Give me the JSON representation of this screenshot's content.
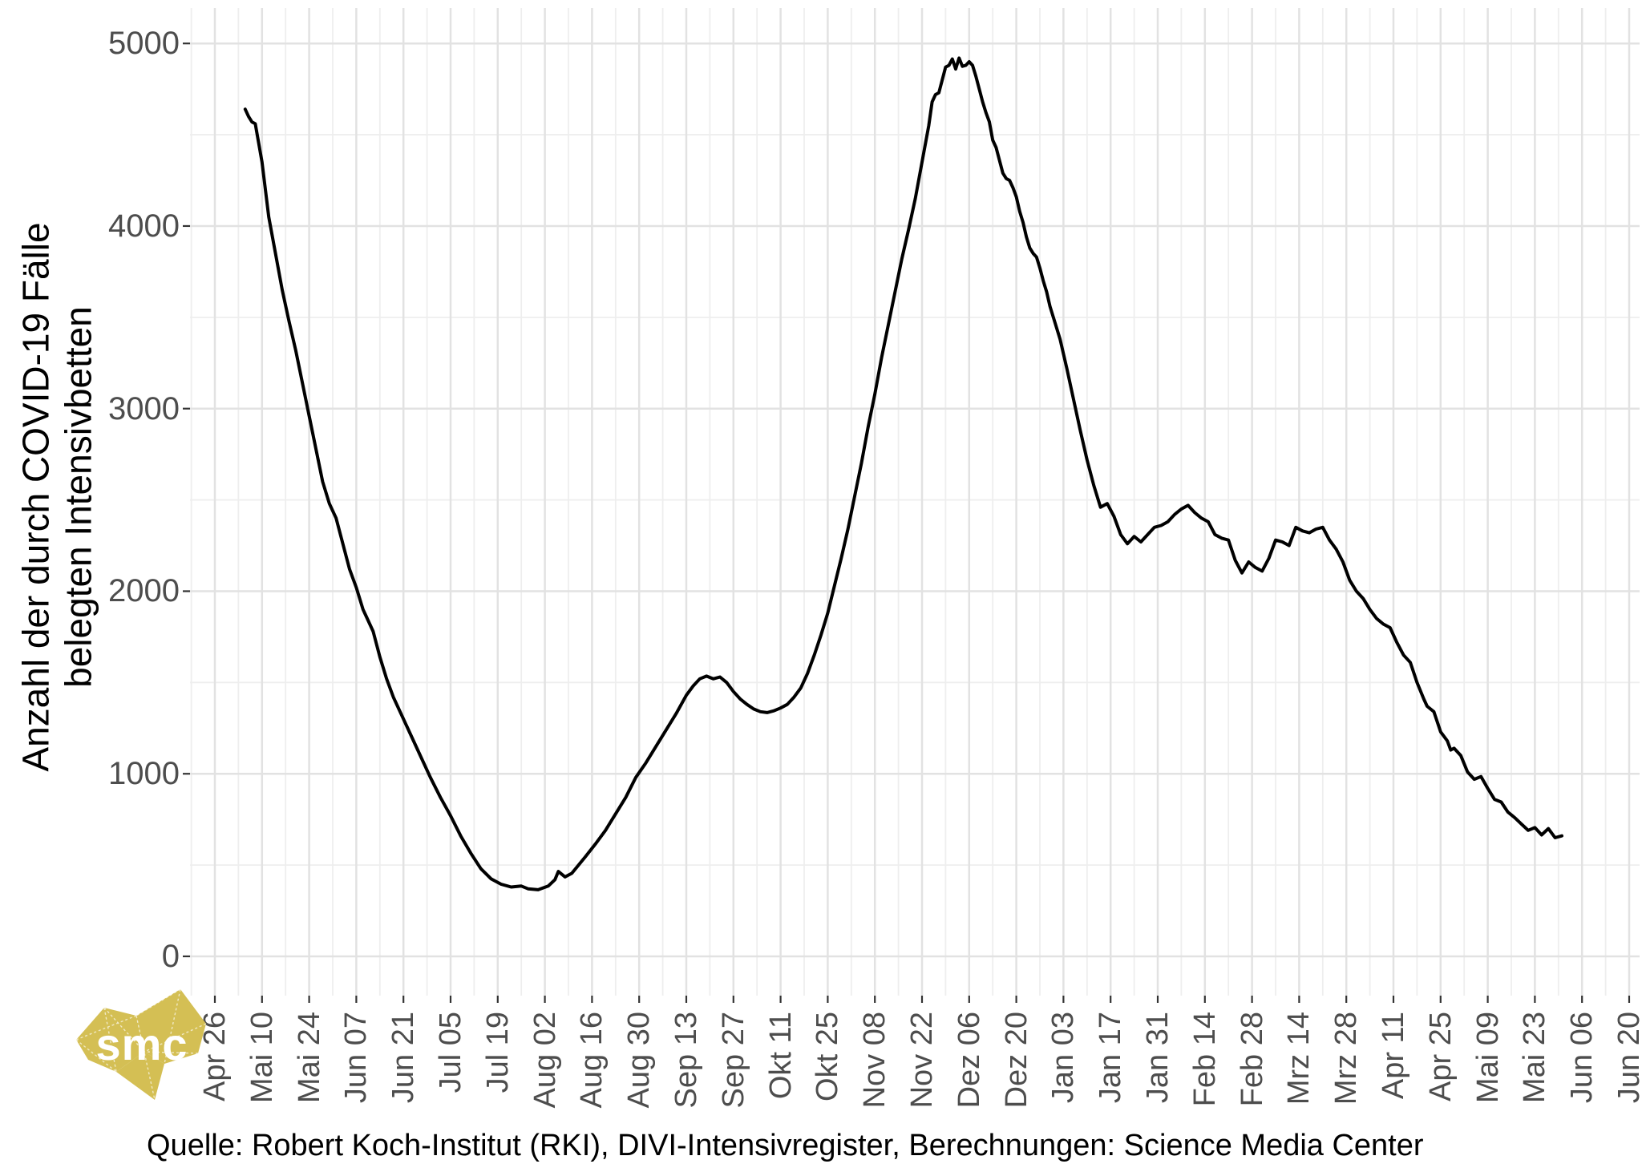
{
  "y_axis": {
    "title_line1": "Anzahl der durch COVID-19 Fälle",
    "title_line2": "belegten Intensivbetten",
    "ticks": [
      0,
      1000,
      2000,
      3000,
      4000,
      5000
    ]
  },
  "x_axis": {
    "tick_labels": [
      "Apr 26",
      "Mai 10",
      "Mai 24",
      "Jun 07",
      "Jun 21",
      "Jul 05",
      "Jul 19",
      "Aug 02",
      "Aug 16",
      "Aug 30",
      "Sep 13",
      "Sep 27",
      "Okt 11",
      "Okt 25",
      "Nov 08",
      "Nov 22",
      "Dez 06",
      "Dez 20",
      "Jan 03",
      "Jan 17",
      "Jan 31",
      "Feb 14",
      "Feb 28",
      "Mrz 14",
      "Mrz 28",
      "Apr 11",
      "Apr 25",
      "Mai 09",
      "Mai 23",
      "Jun 06",
      "Jun 20"
    ],
    "tick_interval_days": 14
  },
  "caption": "Quelle: Robert Koch-Institut (RKI), DIVI-Intensivregister, Berechnungen: Science Media Center",
  "logo_text": "smc",
  "colors": {
    "background": "#ffffff",
    "line": "#000000",
    "grid_major": "#e2e2e2",
    "grid_minor": "#eeeeee",
    "tick_mark": "#333333",
    "tick_label": "#4d4d4d",
    "text": "#000000",
    "logo_gold": "#d4bf54"
  },
  "chart_data": {
    "type": "line",
    "title": "",
    "xlabel": "",
    "ylabel": "Anzahl der durch COVID-19 Fälle belegten Intensivbetten",
    "ylim": [
      0,
      5000
    ],
    "y_ticks": [
      0,
      1000,
      2000,
      3000,
      4000,
      5000
    ],
    "grid": "major+minor, minor y step 500, minor x step 7 days",
    "legend": "none",
    "x_start_date": "2020-04-26",
    "x_end_date": "2021-06-20",
    "x_tick_labels": [
      "Apr 26",
      "Mai 10",
      "Mai 24",
      "Jun 07",
      "Jun 21",
      "Jul 05",
      "Jul 19",
      "Aug 02",
      "Aug 16",
      "Aug 30",
      "Sep 13",
      "Sep 27",
      "Okt 11",
      "Okt 25",
      "Nov 08",
      "Nov 22",
      "Dez 06",
      "Dez 20",
      "Jan 03",
      "Jan 17",
      "Jan 31",
      "Feb 14",
      "Feb 28",
      "Mrz 14",
      "Mrz 28",
      "Apr 11",
      "Apr 25",
      "Mai 09",
      "Mai 23",
      "Jun 06",
      "Jun 20"
    ],
    "series": [
      {
        "name": "COVID-19 belegte Intensivbetten",
        "points": [
          [
            "2020-05-05",
            4640
          ],
          [
            "2020-05-06",
            4600
          ],
          [
            "2020-05-07",
            4570
          ],
          [
            "2020-05-08",
            4560
          ],
          [
            "2020-05-10",
            4350
          ],
          [
            "2020-05-12",
            4050
          ],
          [
            "2020-05-14",
            3850
          ],
          [
            "2020-05-16",
            3650
          ],
          [
            "2020-05-18",
            3480
          ],
          [
            "2020-05-20",
            3320
          ],
          [
            "2020-05-22",
            3140
          ],
          [
            "2020-05-24",
            2960
          ],
          [
            "2020-05-26",
            2780
          ],
          [
            "2020-05-28",
            2600
          ],
          [
            "2020-05-30",
            2480
          ],
          [
            "2020-06-01",
            2400
          ],
          [
            "2020-06-03",
            2260
          ],
          [
            "2020-06-05",
            2120
          ],
          [
            "2020-06-07",
            2020
          ],
          [
            "2020-06-09",
            1900
          ],
          [
            "2020-06-10",
            1860
          ],
          [
            "2020-06-12",
            1780
          ],
          [
            "2020-06-14",
            1640
          ],
          [
            "2020-06-16",
            1520
          ],
          [
            "2020-06-18",
            1420
          ],
          [
            "2020-06-20",
            1340
          ],
          [
            "2020-06-23",
            1220
          ],
          [
            "2020-06-26",
            1100
          ],
          [
            "2020-06-29",
            980
          ],
          [
            "2020-07-02",
            870
          ],
          [
            "2020-07-05",
            770
          ],
          [
            "2020-07-08",
            660
          ],
          [
            "2020-07-11",
            565
          ],
          [
            "2020-07-14",
            480
          ],
          [
            "2020-07-17",
            425
          ],
          [
            "2020-07-20",
            395
          ],
          [
            "2020-07-23",
            380
          ],
          [
            "2020-07-26",
            385
          ],
          [
            "2020-07-28",
            370
          ],
          [
            "2020-07-31",
            365
          ],
          [
            "2020-08-03",
            385
          ],
          [
            "2020-08-05",
            420
          ],
          [
            "2020-08-06",
            465
          ],
          [
            "2020-08-08",
            435
          ],
          [
            "2020-08-10",
            455
          ],
          [
            "2020-08-12",
            500
          ],
          [
            "2020-08-14",
            545
          ],
          [
            "2020-08-17",
            615
          ],
          [
            "2020-08-20",
            690
          ],
          [
            "2020-08-23",
            780
          ],
          [
            "2020-08-26",
            870
          ],
          [
            "2020-08-29",
            980
          ],
          [
            "2020-09-01",
            1060
          ],
          [
            "2020-09-04",
            1150
          ],
          [
            "2020-09-07",
            1240
          ],
          [
            "2020-09-10",
            1330
          ],
          [
            "2020-09-13",
            1430
          ],
          [
            "2020-09-15",
            1480
          ],
          [
            "2020-09-17",
            1520
          ],
          [
            "2020-09-19",
            1535
          ],
          [
            "2020-09-21",
            1520
          ],
          [
            "2020-09-23",
            1530
          ],
          [
            "2020-09-25",
            1500
          ],
          [
            "2020-09-27",
            1450
          ],
          [
            "2020-09-29",
            1410
          ],
          [
            "2020-10-01",
            1380
          ],
          [
            "2020-10-03",
            1355
          ],
          [
            "2020-10-05",
            1340
          ],
          [
            "2020-10-07",
            1335
          ],
          [
            "2020-10-09",
            1345
          ],
          [
            "2020-10-11",
            1360
          ],
          [
            "2020-10-13",
            1380
          ],
          [
            "2020-10-15",
            1420
          ],
          [
            "2020-10-17",
            1470
          ],
          [
            "2020-10-19",
            1550
          ],
          [
            "2020-10-21",
            1650
          ],
          [
            "2020-10-23",
            1760
          ],
          [
            "2020-10-25",
            1880
          ],
          [
            "2020-10-27",
            2030
          ],
          [
            "2020-10-29",
            2180
          ],
          [
            "2020-10-31",
            2340
          ],
          [
            "2020-11-02",
            2520
          ],
          [
            "2020-11-04",
            2700
          ],
          [
            "2020-11-06",
            2900
          ],
          [
            "2020-11-08",
            3080
          ],
          [
            "2020-11-10",
            3280
          ],
          [
            "2020-11-12",
            3460
          ],
          [
            "2020-11-14",
            3640
          ],
          [
            "2020-11-16",
            3820
          ],
          [
            "2020-11-18",
            3980
          ],
          [
            "2020-11-20",
            4150
          ],
          [
            "2020-11-22",
            4350
          ],
          [
            "2020-11-24",
            4550
          ],
          [
            "2020-11-25",
            4680
          ],
          [
            "2020-11-26",
            4720
          ],
          [
            "2020-11-27",
            4730
          ],
          [
            "2020-11-28",
            4800
          ],
          [
            "2020-11-29",
            4870
          ],
          [
            "2020-11-30",
            4880
          ],
          [
            "2020-12-01",
            4915
          ],
          [
            "2020-12-02",
            4860
          ],
          [
            "2020-12-03",
            4920
          ],
          [
            "2020-12-04",
            4875
          ],
          [
            "2020-12-05",
            4880
          ],
          [
            "2020-12-06",
            4900
          ],
          [
            "2020-12-07",
            4880
          ],
          [
            "2020-12-08",
            4820
          ],
          [
            "2020-12-09",
            4750
          ],
          [
            "2020-12-10",
            4680
          ],
          [
            "2020-12-11",
            4620
          ],
          [
            "2020-12-12",
            4570
          ],
          [
            "2020-12-13",
            4470
          ],
          [
            "2020-12-14",
            4430
          ],
          [
            "2020-12-15",
            4360
          ],
          [
            "2020-12-16",
            4290
          ],
          [
            "2020-12-17",
            4260
          ],
          [
            "2020-12-18",
            4250
          ],
          [
            "2020-12-19",
            4210
          ],
          [
            "2020-12-20",
            4160
          ],
          [
            "2020-12-21",
            4080
          ],
          [
            "2020-12-22",
            4020
          ],
          [
            "2020-12-23",
            3940
          ],
          [
            "2020-12-24",
            3880
          ],
          [
            "2020-12-25",
            3850
          ],
          [
            "2020-12-26",
            3830
          ],
          [
            "2020-12-27",
            3770
          ],
          [
            "2020-12-28",
            3700
          ],
          [
            "2020-12-29",
            3640
          ],
          [
            "2020-12-30",
            3560
          ],
          [
            "2020-12-31",
            3500
          ],
          [
            "2021-01-02",
            3380
          ],
          [
            "2021-01-04",
            3220
          ],
          [
            "2021-01-06",
            3050
          ],
          [
            "2021-01-08",
            2880
          ],
          [
            "2021-01-10",
            2720
          ],
          [
            "2021-01-12",
            2580
          ],
          [
            "2021-01-14",
            2460
          ],
          [
            "2021-01-16",
            2480
          ],
          [
            "2021-01-18",
            2410
          ],
          [
            "2021-01-20",
            2310
          ],
          [
            "2021-01-22",
            2260
          ],
          [
            "2021-01-24",
            2300
          ],
          [
            "2021-01-26",
            2270
          ],
          [
            "2021-01-28",
            2310
          ],
          [
            "2021-01-30",
            2350
          ],
          [
            "2021-02-01",
            2360
          ],
          [
            "2021-02-03",
            2380
          ],
          [
            "2021-02-05",
            2420
          ],
          [
            "2021-02-07",
            2450
          ],
          [
            "2021-02-09",
            2470
          ],
          [
            "2021-02-11",
            2430
          ],
          [
            "2021-02-13",
            2400
          ],
          [
            "2021-02-15",
            2380
          ],
          [
            "2021-02-17",
            2310
          ],
          [
            "2021-02-19",
            2290
          ],
          [
            "2021-02-21",
            2280
          ],
          [
            "2021-02-23",
            2170
          ],
          [
            "2021-02-25",
            2100
          ],
          [
            "2021-02-27",
            2160
          ],
          [
            "2021-03-01",
            2130
          ],
          [
            "2021-03-03",
            2110
          ],
          [
            "2021-03-05",
            2180
          ],
          [
            "2021-03-07",
            2280
          ],
          [
            "2021-03-09",
            2270
          ],
          [
            "2021-03-11",
            2250
          ],
          [
            "2021-03-13",
            2350
          ],
          [
            "2021-03-15",
            2330
          ],
          [
            "2021-03-17",
            2320
          ],
          [
            "2021-03-19",
            2340
          ],
          [
            "2021-03-21",
            2350
          ],
          [
            "2021-03-23",
            2280
          ],
          [
            "2021-03-25",
            2230
          ],
          [
            "2021-03-27",
            2160
          ],
          [
            "2021-03-29",
            2060
          ],
          [
            "2021-03-31",
            2000
          ],
          [
            "2021-04-02",
            1960
          ],
          [
            "2021-04-04",
            1900
          ],
          [
            "2021-04-06",
            1850
          ],
          [
            "2021-04-08",
            1820
          ],
          [
            "2021-04-10",
            1800
          ],
          [
            "2021-04-12",
            1720
          ],
          [
            "2021-04-14",
            1650
          ],
          [
            "2021-04-16",
            1610
          ],
          [
            "2021-04-18",
            1500
          ],
          [
            "2021-04-20",
            1410
          ],
          [
            "2021-04-21",
            1370
          ],
          [
            "2021-04-23",
            1340
          ],
          [
            "2021-04-25",
            1230
          ],
          [
            "2021-04-27",
            1180
          ],
          [
            "2021-04-28",
            1130
          ],
          [
            "2021-04-29",
            1140
          ],
          [
            "2021-05-01",
            1100
          ],
          [
            "2021-05-03",
            1010
          ],
          [
            "2021-05-05",
            970
          ],
          [
            "2021-05-07",
            985
          ],
          [
            "2021-05-09",
            920
          ],
          [
            "2021-05-11",
            860
          ],
          [
            "2021-05-13",
            845
          ],
          [
            "2021-05-15",
            790
          ],
          [
            "2021-05-17",
            760
          ],
          [
            "2021-05-19",
            725
          ],
          [
            "2021-05-21",
            690
          ],
          [
            "2021-05-23",
            705
          ],
          [
            "2021-05-25",
            665
          ],
          [
            "2021-05-27",
            700
          ],
          [
            "2021-05-29",
            650
          ],
          [
            "2021-05-31",
            660
          ]
        ]
      }
    ]
  }
}
